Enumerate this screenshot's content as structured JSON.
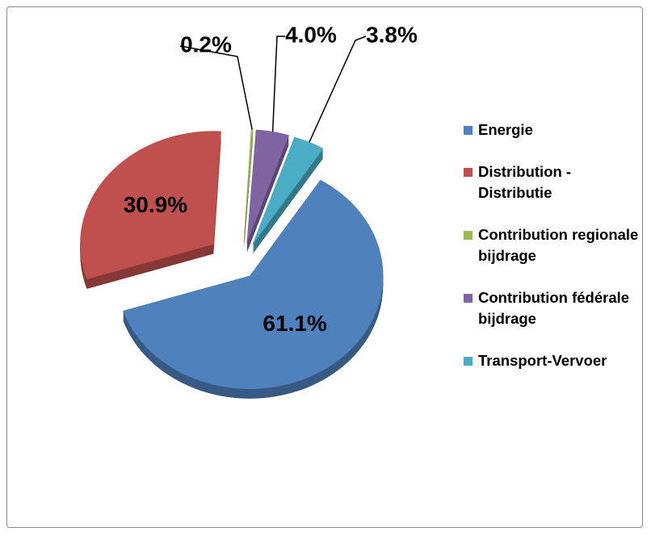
{
  "chart_data": {
    "type": "pie",
    "categories": [
      "Energie",
      "Distribution - Distributie",
      "Contribution regionale bijdrage",
      "Contribution fédérale bijdrage",
      "Transport-Vervoer"
    ],
    "values": [
      61.1,
      30.9,
      0.2,
      4.0,
      3.8
    ],
    "value_labels": [
      "61.1%",
      "30.9%",
      "0.2%",
      "4.0%",
      "3.8%"
    ],
    "colors": [
      "#4f81bd",
      "#c0504d",
      "#9bbb59",
      "#8064a2",
      "#4bacc6"
    ],
    "legend": "right"
  }
}
